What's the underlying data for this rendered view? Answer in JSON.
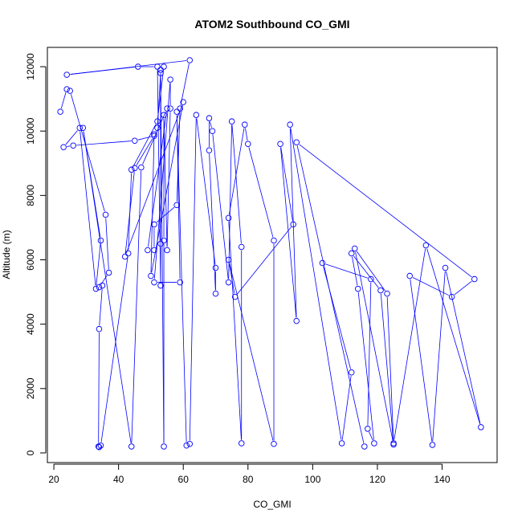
{
  "chart_data": {
    "type": "line",
    "title": "ATOM2 Southbound CO_GMI",
    "xlabel": "CO_GMI",
    "ylabel": "Altitude (m)",
    "xlim": [
      18,
      157
    ],
    "ylim": [
      -300,
      12600
    ],
    "xticks": [
      20,
      40,
      60,
      80,
      100,
      120,
      140
    ],
    "yticks": [
      0,
      2000,
      4000,
      6000,
      8000,
      10000,
      12000
    ],
    "grid": false,
    "legend": "none",
    "colors": {
      "series": "#0000ff",
      "frame": "#000000"
    },
    "series": [
      {
        "points": [
          [
            22,
            10600
          ],
          [
            24,
            11300
          ],
          [
            25,
            11250
          ],
          [
            36,
            7400
          ],
          [
            37,
            5600
          ],
          [
            34,
            5150
          ],
          [
            35,
            5200
          ],
          [
            34,
            3850
          ],
          [
            33.8,
            200
          ],
          [
            34,
            180
          ],
          [
            34.5,
            230
          ],
          [
            43,
            6200
          ],
          [
            44,
            8800
          ],
          [
            52,
            10300
          ],
          [
            54,
            12000
          ],
          [
            53,
            11800
          ],
          [
            52,
            10100
          ],
          [
            51,
            9900
          ],
          [
            50,
            5500
          ],
          [
            60,
            10900
          ],
          [
            42,
            6100
          ],
          [
            45,
            8850
          ],
          [
            51,
            9850
          ],
          [
            45,
            9700
          ],
          [
            26,
            9550
          ],
          [
            23,
            9500
          ],
          [
            28,
            10100
          ],
          [
            33,
            5100
          ],
          [
            34.5,
            6600
          ],
          [
            29,
            10100
          ],
          [
            44,
            200
          ],
          [
            47,
            8870
          ],
          [
            55,
            10700
          ],
          [
            49,
            6300
          ],
          [
            51,
            6300
          ],
          [
            51,
            7100
          ],
          [
            58,
            7700
          ],
          [
            59,
            10700
          ],
          [
            62,
            12200
          ],
          [
            24,
            11750
          ],
          [
            46,
            12000
          ],
          [
            52,
            12000
          ],
          [
            53,
            5200
          ],
          [
            53,
            6500
          ],
          [
            53,
            11900
          ],
          [
            54,
            200
          ],
          [
            54,
            6600
          ],
          [
            54,
            10500
          ],
          [
            55,
            6300
          ],
          [
            56,
            10700
          ],
          [
            56,
            11600
          ],
          [
            51,
            5300
          ],
          [
            59,
            5300
          ],
          [
            58,
            10600
          ],
          [
            61,
            230
          ],
          [
            62,
            280
          ],
          [
            64,
            10500
          ],
          [
            70,
            5750
          ],
          [
            70,
            4950
          ],
          [
            68,
            9400
          ],
          [
            68,
            10400
          ],
          [
            69,
            10000
          ],
          [
            74,
            5300
          ],
          [
            75,
            10300
          ],
          [
            78,
            6400
          ],
          [
            78,
            300
          ],
          [
            74,
            7300
          ],
          [
            79,
            10200
          ],
          [
            80,
            9600
          ],
          [
            88,
            6600
          ],
          [
            88,
            280
          ],
          [
            74,
            6000
          ],
          [
            76,
            4850
          ],
          [
            94,
            7100
          ],
          [
            90,
            9600
          ],
          [
            95,
            4100
          ],
          [
            93,
            10200
          ],
          [
            109,
            300
          ],
          [
            112,
            2500
          ],
          [
            103,
            5900
          ],
          [
            118,
            5400
          ],
          [
            117,
            750
          ],
          [
            119,
            300
          ],
          [
            114,
            5100
          ],
          [
            112,
            6200
          ],
          [
            121,
            5050
          ],
          [
            125,
            260
          ],
          [
            113,
            6350
          ],
          [
            123,
            4950
          ],
          [
            125,
            300
          ],
          [
            135,
            6450
          ],
          [
            152,
            800
          ],
          [
            141,
            5750
          ],
          [
            137,
            250
          ],
          [
            130,
            5500
          ],
          [
            143,
            4850
          ],
          [
            150,
            5400
          ],
          [
            95,
            9650
          ],
          [
            116,
            200
          ]
        ]
      }
    ]
  }
}
